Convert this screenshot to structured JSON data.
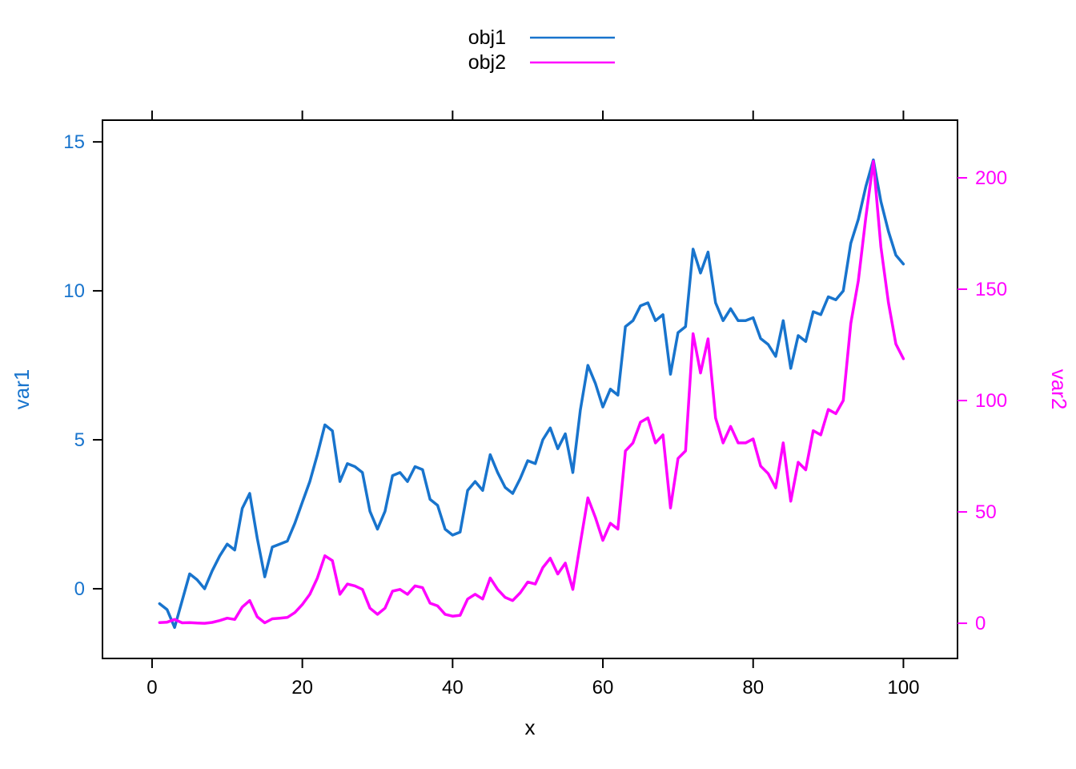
{
  "figure": {
    "background": "#ffffff",
    "axis_color": "#000000"
  },
  "chart_data": {
    "type": "line",
    "title": "",
    "xlabel": "x",
    "ylabel_left": "var1",
    "ylabel_right": "var2",
    "xlim": [
      -6.6,
      107.2
    ],
    "ylim_left": [
      -2.34,
      15.73
    ],
    "ylim_right": [
      -15.8,
      225.9
    ],
    "x_ticks": [
      0,
      20,
      40,
      60,
      80,
      100
    ],
    "y_ticks_left": [
      0,
      5,
      10,
      15
    ],
    "y_ticks_right": [
      0,
      50,
      100,
      150,
      200
    ],
    "grid": false,
    "legend": {
      "position": "top-center",
      "entries": [
        "obj1",
        "obj2"
      ]
    },
    "x": [
      1,
      2,
      3,
      4,
      5,
      6,
      7,
      8,
      9,
      10,
      11,
      12,
      13,
      14,
      15,
      16,
      17,
      18,
      19,
      20,
      21,
      22,
      23,
      24,
      25,
      26,
      27,
      28,
      29,
      30,
      31,
      32,
      33,
      34,
      35,
      36,
      37,
      38,
      39,
      40,
      41,
      42,
      43,
      44,
      45,
      46,
      47,
      48,
      49,
      50,
      51,
      52,
      53,
      54,
      55,
      56,
      57,
      58,
      59,
      60,
      61,
      62,
      63,
      64,
      65,
      66,
      67,
      68,
      69,
      70,
      71,
      72,
      73,
      74,
      75,
      76,
      77,
      78,
      79,
      80,
      81,
      82,
      83,
      84,
      85,
      86,
      87,
      88,
      89,
      90,
      91,
      92,
      93,
      94,
      95,
      96,
      97,
      98,
      99,
      100
    ],
    "series": [
      {
        "name": "obj1",
        "axis": "left",
        "color": "#1874CD",
        "label_color": "#1874CD",
        "values": [
          -0.5,
          -0.7,
          -1.3,
          -0.4,
          0.5,
          0.3,
          0.0,
          0.6,
          1.1,
          1.5,
          1.3,
          2.7,
          3.2,
          1.7,
          0.4,
          1.4,
          1.5,
          1.6,
          2.2,
          2.9,
          3.6,
          4.5,
          5.5,
          5.3,
          3.6,
          4.2,
          4.1,
          3.9,
          2.6,
          2.0,
          2.6,
          3.8,
          3.9,
          3.6,
          4.1,
          4.0,
          3.0,
          2.8,
          2.0,
          1.8,
          1.9,
          3.3,
          3.6,
          3.3,
          4.5,
          3.9,
          3.4,
          3.2,
          3.7,
          4.3,
          4.2,
          5.0,
          5.4,
          4.7,
          5.2,
          3.9,
          6.0,
          7.5,
          6.9,
          6.1,
          6.7,
          6.5,
          8.8,
          9.0,
          9.5,
          9.6,
          9.0,
          9.2,
          7.2,
          8.6,
          8.8,
          11.4,
          10.6,
          11.3,
          9.6,
          9.0,
          9.4,
          9.0,
          9.0,
          9.1,
          8.4,
          8.2,
          7.8,
          9.0,
          7.4,
          8.5,
          8.3,
          9.3,
          9.2,
          9.8,
          9.7,
          10.0,
          11.6,
          12.4,
          13.5,
          14.4,
          13.0,
          12.0,
          11.2,
          10.9
        ]
      },
      {
        "name": "obj2",
        "axis": "right",
        "color": "#FF00FF",
        "label_color": "#FF00FF",
        "values": [
          0.3,
          0.5,
          1.7,
          0.2,
          0.3,
          0.1,
          0.0,
          0.4,
          1.2,
          2.3,
          1.7,
          7.3,
          10.2,
          2.9,
          0.2,
          2.0,
          2.3,
          2.6,
          4.8,
          8.4,
          13.0,
          20.3,
          30.3,
          28.1,
          13.0,
          17.6,
          16.8,
          15.2,
          6.8,
          4.0,
          6.8,
          14.4,
          15.2,
          13.0,
          16.8,
          16.0,
          9.0,
          7.8,
          4.0,
          3.2,
          3.6,
          10.9,
          13.0,
          10.9,
          20.3,
          15.2,
          11.6,
          10.2,
          13.7,
          18.5,
          17.6,
          25.0,
          29.2,
          22.1,
          27.0,
          15.2,
          36.0,
          56.3,
          47.6,
          37.2,
          44.9,
          42.3,
          77.4,
          81.0,
          90.3,
          92.2,
          81.0,
          84.6,
          51.8,
          74.0,
          77.4,
          130.0,
          112.4,
          127.7,
          92.2,
          81.0,
          88.4,
          81.0,
          81.0,
          82.8,
          70.6,
          67.2,
          60.8,
          81.0,
          54.8,
          72.3,
          68.9,
          86.5,
          84.6,
          96.0,
          94.1,
          100.0,
          134.6,
          153.8,
          182.3,
          207.4,
          169.0,
          144.0,
          125.4,
          118.8
        ]
      }
    ]
  }
}
